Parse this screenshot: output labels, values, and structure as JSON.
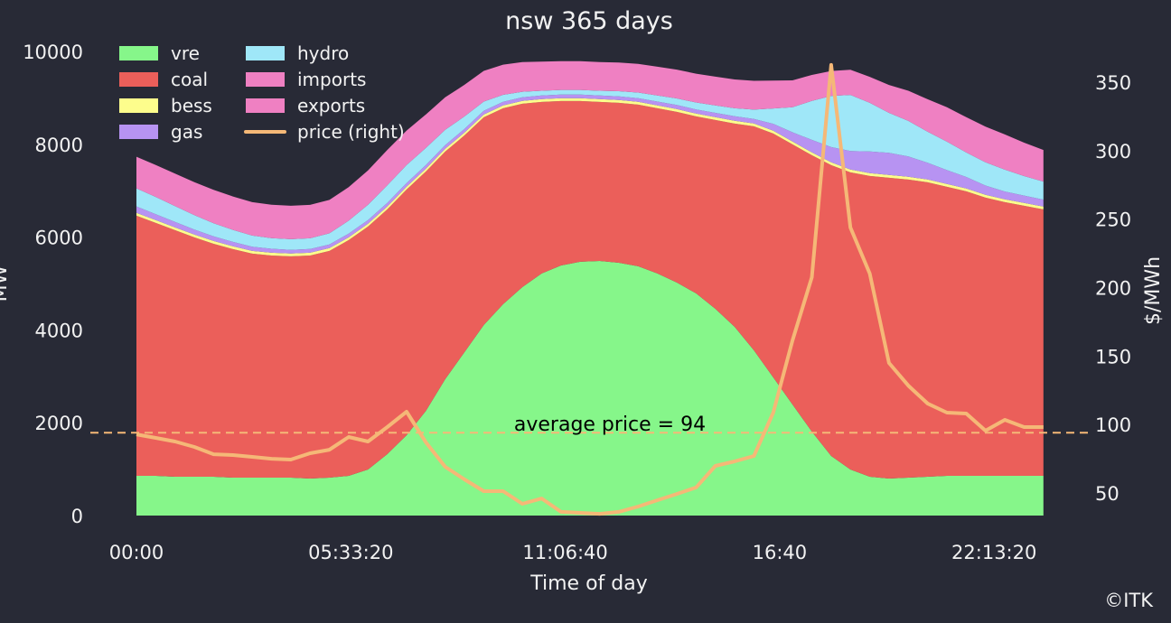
{
  "chart_data": {
    "type": "area",
    "title": "nsw 365 days",
    "xlabel": "Time of day",
    "ylabel": "MW",
    "ylabel_right": "$/MWh",
    "x_seconds": [
      0,
      1800,
      3600,
      5400,
      7200,
      9000,
      10800,
      12600,
      14400,
      16200,
      18000,
      19800,
      21600,
      23400,
      25200,
      27000,
      28800,
      30600,
      32400,
      34200,
      36000,
      37800,
      39600,
      41400,
      43200,
      45000,
      46800,
      48600,
      50400,
      52200,
      54000,
      55800,
      57600,
      59400,
      61200,
      63000,
      64800,
      66600,
      68400,
      70200,
      72000,
      73800,
      75600,
      77400,
      79200,
      81000,
      82800,
      84600
    ],
    "x_ticks": [
      {
        "value": 0,
        "label": "00:00"
      },
      {
        "value": 20000,
        "label": "05:33:20"
      },
      {
        "value": 40000,
        "label": "11:06:40"
      },
      {
        "value": 60000,
        "label": "16:40"
      },
      {
        "value": 80000,
        "label": "22:13:20"
      }
    ],
    "y_ticks": [
      0,
      2000,
      4000,
      6000,
      8000,
      10000
    ],
    "y_right_ticks": [
      50,
      100,
      150,
      200,
      250,
      300,
      350
    ],
    "ylim": [
      0,
      10000
    ],
    "ylim_right": [
      33.5,
      372
    ],
    "legend_position": "top-left",
    "series": [
      {
        "name": "vre",
        "color": "#86f68a",
        "values": [
          856,
          856,
          837,
          837,
          837,
          817,
          817,
          817,
          817,
          798,
          817,
          856,
          992,
          1323,
          1732,
          2257,
          2938,
          3522,
          4106,
          4554,
          4923,
          5215,
          5390,
          5468,
          5487,
          5448,
          5371,
          5215,
          5021,
          4787,
          4456,
          4067,
          3561,
          2977,
          2393,
          1810,
          1284,
          992,
          837,
          798,
          817,
          837,
          856,
          856,
          856,
          856,
          856,
          856
        ]
      },
      {
        "name": "coal",
        "color": "#eb5f5a",
        "values": [
          5605,
          5449,
          5312,
          5157,
          5020,
          4924,
          4826,
          4787,
          4768,
          4806,
          4885,
          5079,
          5235,
          5274,
          5293,
          5157,
          4904,
          4670,
          4475,
          4222,
          3950,
          3698,
          3542,
          3464,
          3426,
          3445,
          3483,
          3561,
          3677,
          3814,
          4067,
          4379,
          4826,
          5255,
          5605,
          5955,
          6266,
          6403,
          6480,
          6480,
          6422,
          6344,
          6227,
          6130,
          5994,
          5897,
          5819,
          5741
        ]
      },
      {
        "name": "bess",
        "color": "#fdfd8c",
        "values": [
          60,
          60,
          60,
          60,
          60,
          60,
          60,
          60,
          60,
          60,
          60,
          60,
          60,
          60,
          60,
          60,
          60,
          60,
          60,
          60,
          60,
          60,
          60,
          60,
          60,
          60,
          60,
          60,
          60,
          60,
          60,
          60,
          60,
          60,
          60,
          60,
          60,
          60,
          60,
          60,
          60,
          60,
          60,
          60,
          60,
          60,
          60,
          60
        ]
      },
      {
        "name": "gas",
        "color": "#b793f2",
        "values": [
          140,
          130,
          120,
          110,
          100,
          95,
          90,
          85,
          80,
          80,
          80,
          80,
          80,
          80,
          80,
          80,
          80,
          80,
          80,
          80,
          80,
          80,
          80,
          80,
          80,
          80,
          80,
          85,
          90,
          90,
          95,
          100,
          100,
          150,
          200,
          270,
          330,
          400,
          470,
          480,
          440,
          360,
          300,
          250,
          200,
          170,
          160,
          150
        ]
      },
      {
        "name": "hydro",
        "color": "#9fe7f8",
        "values": [
          390,
          370,
          340,
          310,
          280,
          260,
          240,
          230,
          230,
          230,
          240,
          280,
          330,
          380,
          390,
          370,
          330,
          270,
          200,
          150,
          120,
          100,
          100,
          100,
          100,
          110,
          120,
          130,
          140,
          150,
          160,
          170,
          200,
          330,
          540,
          840,
          1100,
          1210,
          1046,
          860,
          765,
          670,
          614,
          527,
          500,
          470,
          420,
          390
        ]
      },
      {
        "name": "imports",
        "color": "#ef80c2",
        "values": [
          680,
          690,
          700,
          710,
          720,
          720,
          720,
          720,
          720,
          720,
          720,
          720,
          740,
          760,
          740,
          720,
          700,
          680,
          660,
          650,
          640,
          630,
          620,
          620,
          620,
          620,
          620,
          620,
          620,
          620,
          620,
          620,
          620,
          600,
          580,
          560,
          540,
          540,
          560,
          600,
          650,
          700,
          740,
          760,
          770,
          760,
          720,
          680
        ]
      },
      {
        "name": "exports",
        "color": "#ef80c2",
        "values": [
          0,
          0,
          0,
          0,
          0,
          0,
          0,
          0,
          0,
          0,
          0,
          0,
          0,
          0,
          0,
          0,
          0,
          0,
          0,
          0,
          0,
          0,
          0,
          0,
          0,
          0,
          0,
          0,
          0,
          0,
          0,
          0,
          0,
          0,
          0,
          0,
          0,
          0,
          0,
          0,
          0,
          0,
          0,
          0,
          0,
          0,
          0,
          0
        ]
      }
    ],
    "price": {
      "name": "price (right)",
      "color": "#f5b877",
      "values": [
        92.8,
        90.2,
        87.6,
        83.6,
        78.3,
        77.7,
        76.4,
        75.0,
        74.4,
        79.0,
        81.6,
        90.9,
        87.6,
        98.1,
        109.3,
        86.9,
        69.1,
        59.9,
        51.3,
        51.3,
        42.1,
        46.0,
        36.2,
        35.5,
        34.8,
        36.2,
        40.1,
        44.7,
        49.3,
        54.0,
        69.8,
        73.1,
        77.0,
        108.7,
        161.4,
        207.5,
        362.5,
        243.8,
        210.2,
        144.9,
        128.4,
        115.3,
        108.7,
        108.0,
        95.5,
        103.4,
        98.1,
        98.1
      ]
    },
    "average_price": {
      "value": 94,
      "label": "average price = 94"
    }
  },
  "footer": {
    "copyright": "©ITK"
  }
}
